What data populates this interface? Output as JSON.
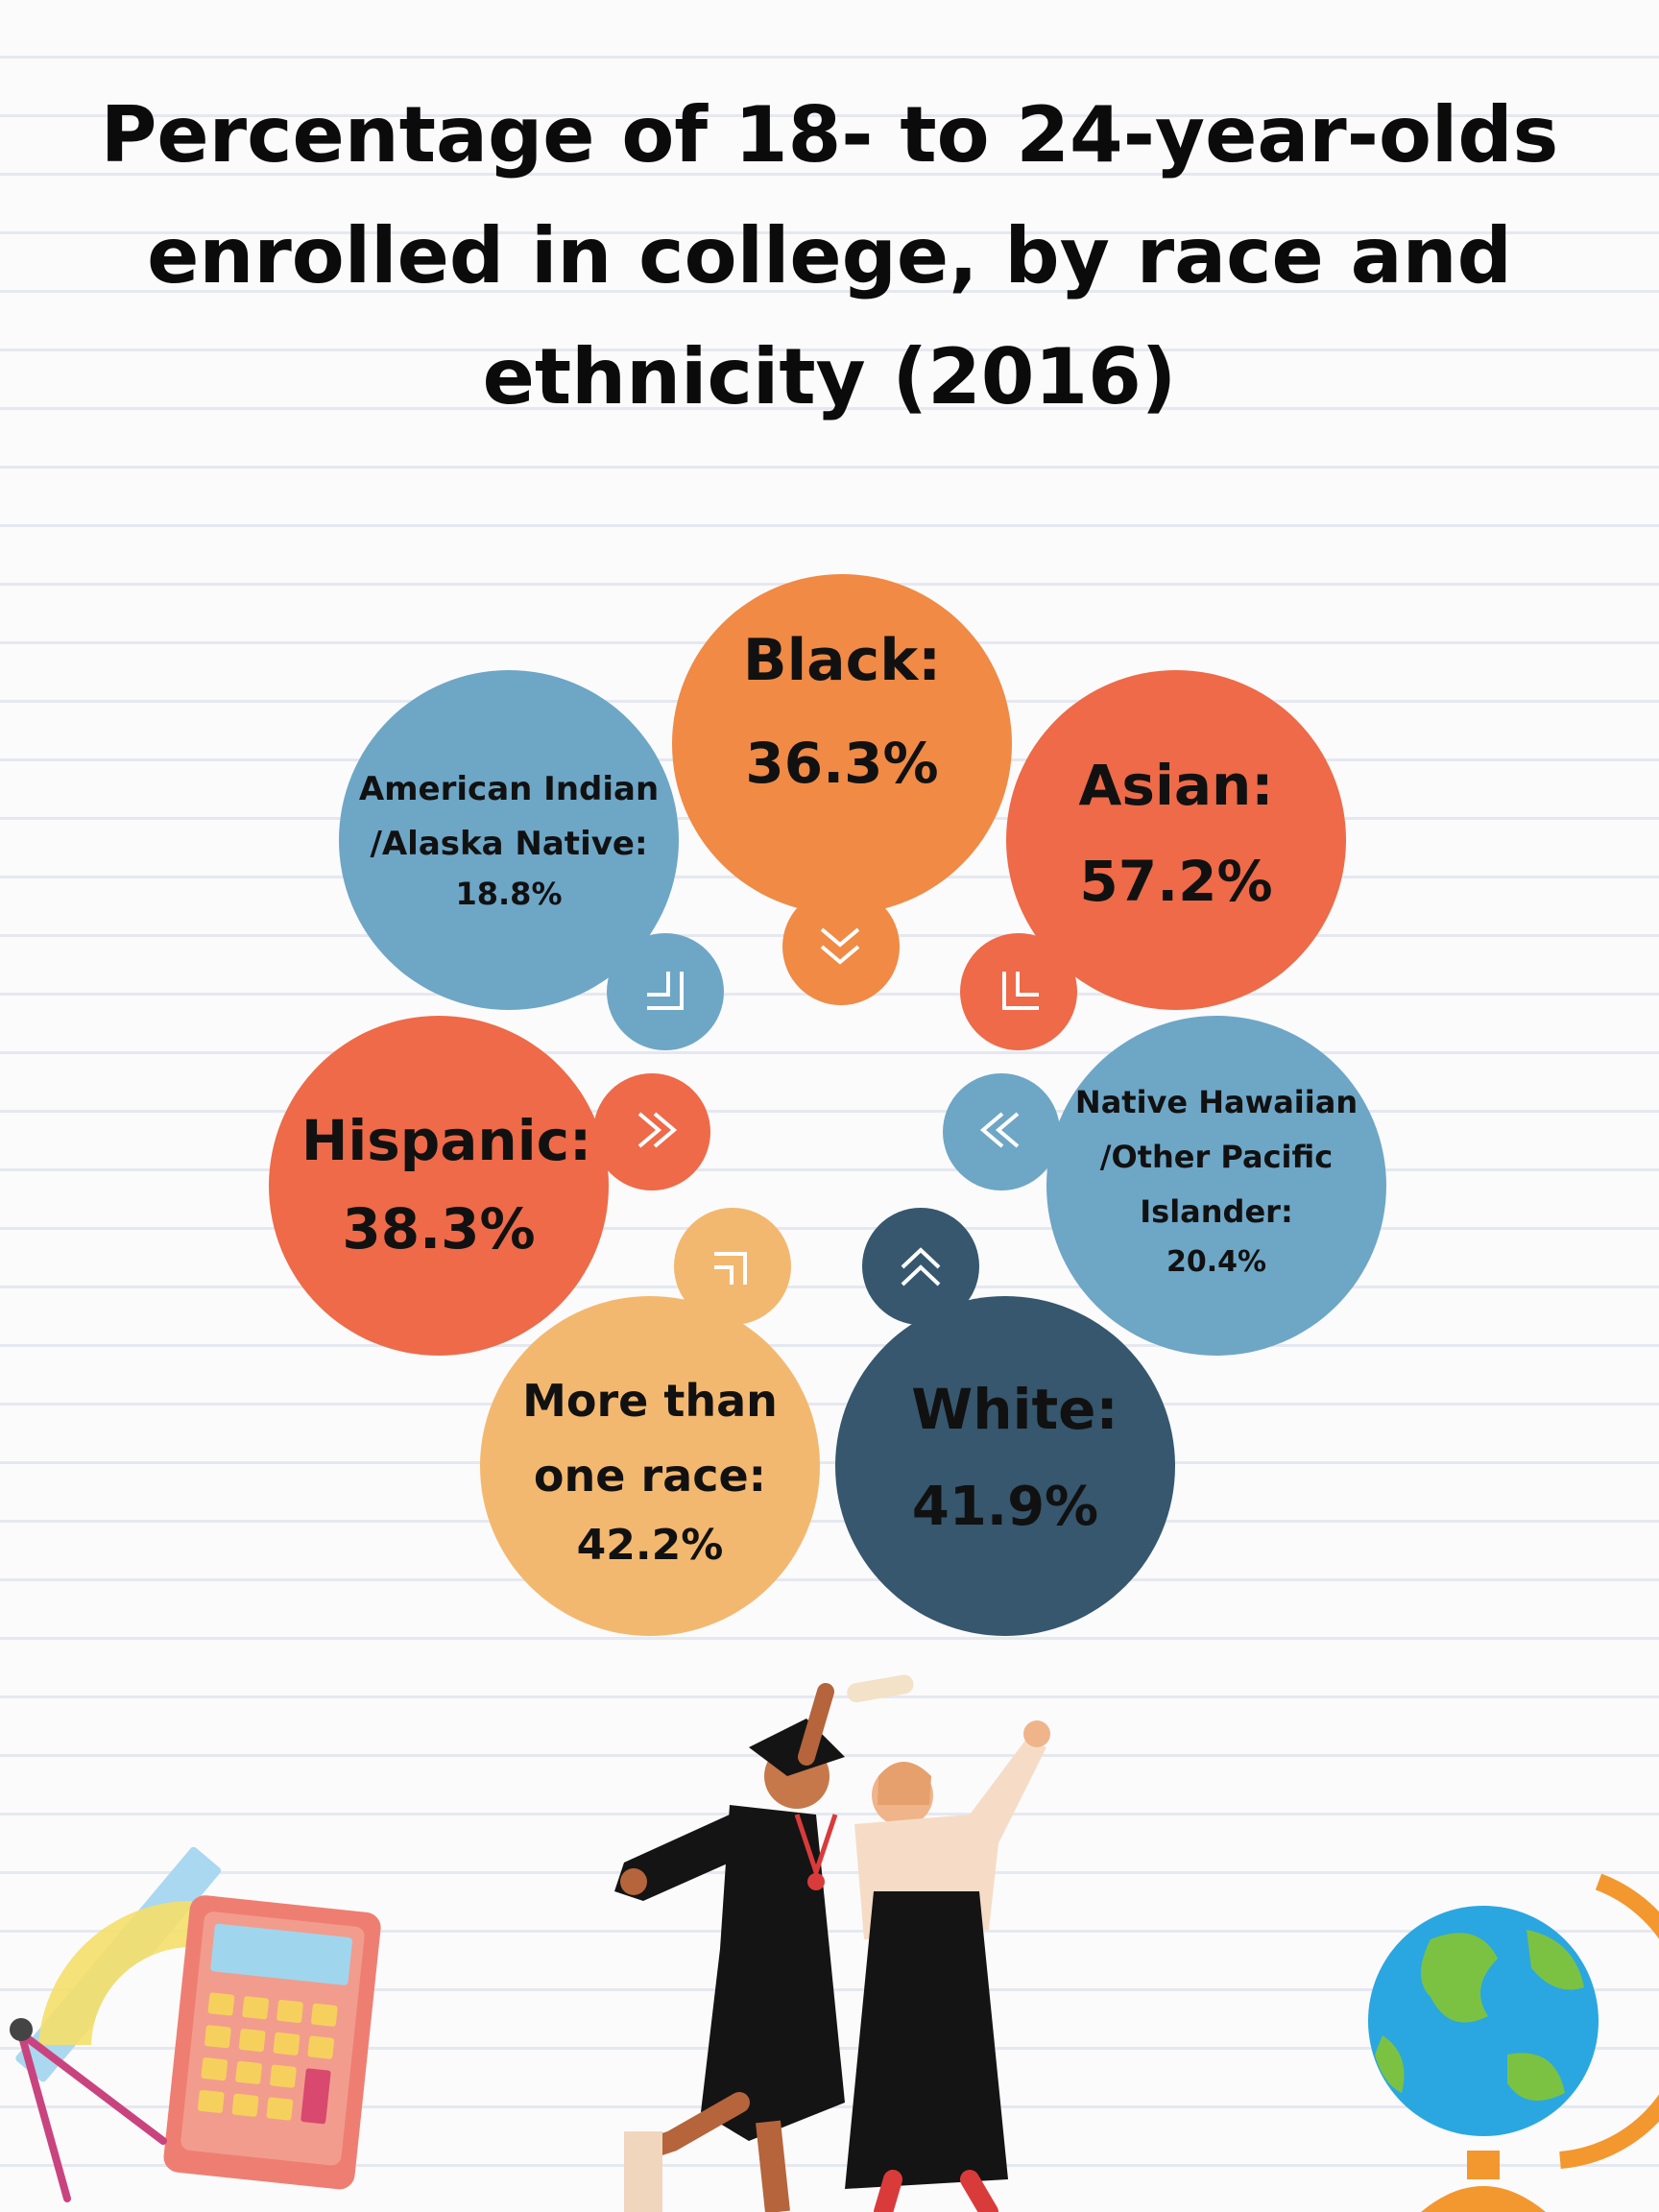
{
  "title": "Percentage of 18- to 24-year-olds enrolled in college, by race and ethnicity (2016)",
  "colors": {
    "orange": "#f08a45",
    "coral": "#ee6a48",
    "blue": "#6ea6c6",
    "navy": "#36576e",
    "sand": "#f3b86f"
  },
  "groups": [
    {
      "label": "Black:",
      "value": "36.3%",
      "percent": 36.3
    },
    {
      "label": "Asian:",
      "value": "57.2%",
      "percent": 57.2
    },
    {
      "label": "American Indian /Alaska Native:",
      "value": "18.8%",
      "percent": 18.8
    },
    {
      "label": "Hispanic:",
      "value": "38.3%",
      "percent": 38.3
    },
    {
      "label": "Native Hawaiian /Other Pacific Islander:",
      "value": "20.4%",
      "percent": 20.4
    },
    {
      "label": "More than one race:",
      "value": "42.2%",
      "percent": 42.2
    },
    {
      "label": "White:",
      "value": "41.9%",
      "percent": 41.9
    }
  ]
}
